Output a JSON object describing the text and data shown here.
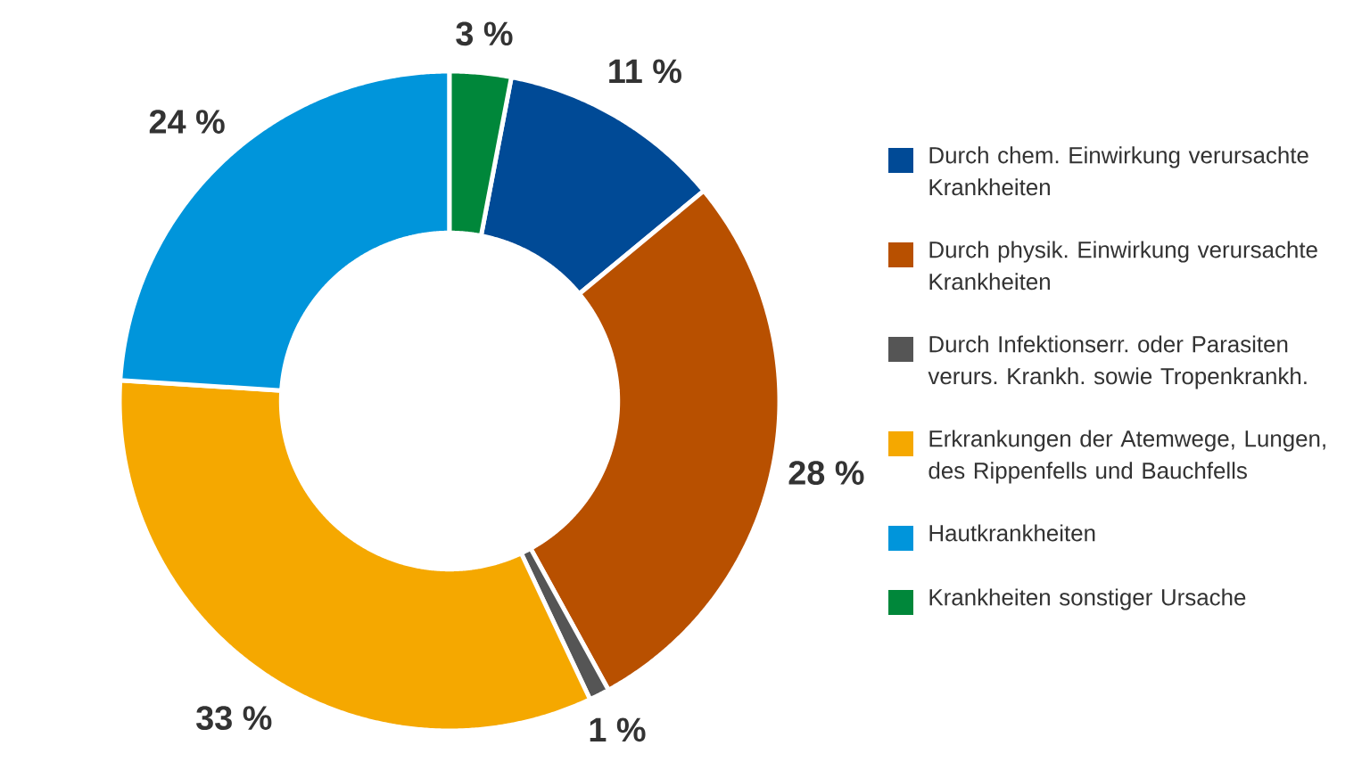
{
  "chart_data": {
    "type": "donut",
    "categories": [
      "Durch chem. Einwirkung verursachte Krankheiten",
      "Durch physik. Einwirkung verursachte Krankheiten",
      "Durch Infektionserr. oder Parasiten verurs. Krankh. sowie Tropenkrankh.",
      "Erkrankungen der Atemwege, Lungen, des Rippenfells und Bauchfells",
      "Hautkrankheiten",
      "Krankheiten sonstiger Ursache"
    ],
    "values": [
      11,
      28,
      1,
      33,
      24,
      3
    ],
    "colors": [
      "#004a96",
      "#b85000",
      "#555555",
      "#f5a800",
      "#0095db",
      "#00873a"
    ],
    "value_labels": [
      "11 %",
      "28 %",
      "1 %",
      "33 %",
      "24 %",
      "3 %"
    ],
    "legend": "right"
  }
}
